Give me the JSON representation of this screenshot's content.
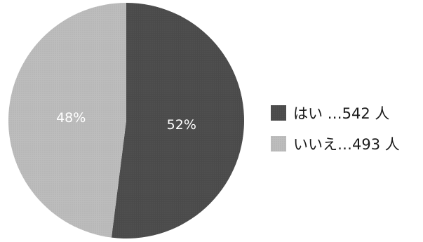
{
  "chart_data": {
    "type": "pie",
    "slices": [
      {
        "category": "はい",
        "count": 542,
        "percent": 52,
        "percent_label": "52%",
        "legend_label": "はい …542 人",
        "color": "#4a4a4a"
      },
      {
        "category": "いいえ",
        "count": 493,
        "percent": 48,
        "percent_label": "48%",
        "legend_label": "いいえ…493 人",
        "color": "#bdbdbd"
      }
    ],
    "start_angle": "12 o'clock",
    "direction": "clockwise",
    "legend_position": "right"
  }
}
